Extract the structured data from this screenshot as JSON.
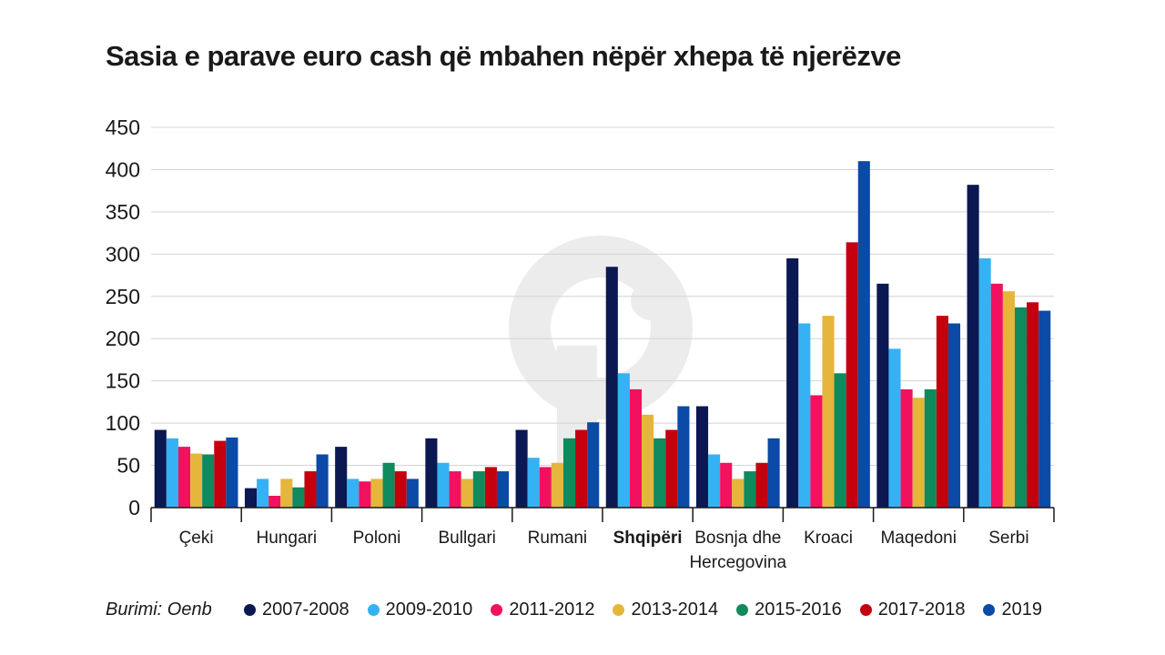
{
  "title": "Sasia e parave euro cash që mbahen nëpër xhepa të njerëzve",
  "source": "Burimi: Oenb",
  "colors": [
    "#0b1852",
    "#35b2f3",
    "#f2115f",
    "#e6b53b",
    "#0f8a5c",
    "#c4000f",
    "#0b4aa6"
  ],
  "chart_data": {
    "type": "bar",
    "title": "Sasia e parave euro cash që mbahen nëpër xhepa të njerëzve",
    "xlabel": "",
    "ylabel": "",
    "ylim": [
      0,
      450
    ],
    "yticks": [
      "0",
      "50",
      "100",
      "150",
      "200",
      "250",
      "300",
      "350",
      "400",
      "450"
    ],
    "grid": true,
    "legend_position": "bottom",
    "categories": [
      "Çeki",
      "Hungari",
      "Poloni",
      "Bullgari",
      "Rumani",
      "Shqipëri",
      "Bosnja dhe\nHercegovina",
      "Kroaci",
      "Maqedoni",
      "Serbi"
    ],
    "highlighted_category": "Shqipëri",
    "series": [
      {
        "name": "2007-2008",
        "values": [
          92,
          23,
          72,
          82,
          92,
          285,
          120,
          295,
          265,
          382
        ]
      },
      {
        "name": "2009-2010",
        "values": [
          82,
          34,
          34,
          53,
          59,
          159,
          63,
          218,
          188,
          295
        ]
      },
      {
        "name": "2011-2012",
        "values": [
          72,
          14,
          31,
          43,
          48,
          140,
          53,
          133,
          140,
          265
        ]
      },
      {
        "name": "2013-2014",
        "values": [
          64,
          34,
          34,
          34,
          53,
          110,
          34,
          227,
          130,
          256
        ]
      },
      {
        "name": "2015-2016",
        "values": [
          63,
          24,
          53,
          43,
          82,
          82,
          43,
          159,
          140,
          237
        ]
      },
      {
        "name": "2017-2018",
        "values": [
          79,
          43,
          43,
          48,
          92,
          92,
          53,
          314,
          227,
          243
        ]
      },
      {
        "name": "2019",
        "values": [
          83,
          63,
          34,
          43,
          101,
          120,
          82,
          410,
          218,
          233
        ]
      }
    ]
  }
}
